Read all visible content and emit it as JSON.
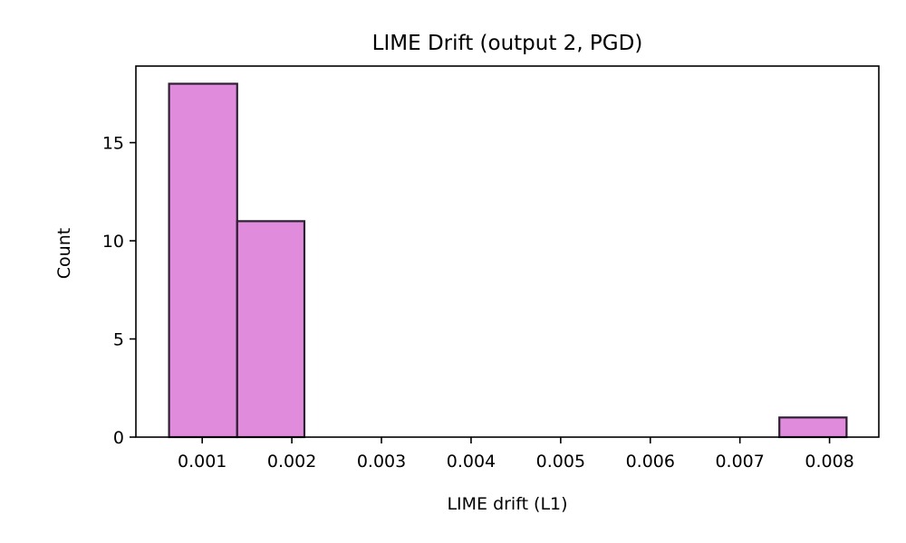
{
  "chart_data": {
    "type": "bar",
    "title": "LIME Drift (output 2, PGD)",
    "xlabel": "LIME drift (L1)",
    "ylabel": "Count",
    "xlim": [
      0.00026,
      0.00855
    ],
    "ylim": [
      0,
      18.9
    ],
    "xticks": [
      0.001,
      0.002,
      0.003,
      0.004,
      0.005,
      0.006,
      0.007,
      0.008
    ],
    "xtick_labels": [
      "0.001",
      "0.002",
      "0.003",
      "0.004",
      "0.005",
      "0.006",
      "0.007",
      "0.008"
    ],
    "yticks": [
      0,
      5,
      10,
      15
    ],
    "ytick_labels": [
      "0",
      "5",
      "10",
      "15"
    ],
    "bins": [
      {
        "x0": 0.00063,
        "x1": 0.00139,
        "count": 18
      },
      {
        "x0": 0.00139,
        "x1": 0.00214,
        "count": 11
      },
      {
        "x0": 0.00214,
        "x1": 0.0029,
        "count": 0
      },
      {
        "x0": 0.0029,
        "x1": 0.00366,
        "count": 0
      },
      {
        "x0": 0.00366,
        "x1": 0.00441,
        "count": 0
      },
      {
        "x0": 0.00441,
        "x1": 0.00517,
        "count": 0
      },
      {
        "x0": 0.00517,
        "x1": 0.00592,
        "count": 0
      },
      {
        "x0": 0.00592,
        "x1": 0.00668,
        "count": 0
      },
      {
        "x0": 0.00668,
        "x1": 0.00744,
        "count": 0
      },
      {
        "x0": 0.00744,
        "x1": 0.00819,
        "count": 1
      }
    ],
    "bar_color": "#e08bdc",
    "edge_color": "#2e1f33",
    "grid": false,
    "legend": "none"
  }
}
